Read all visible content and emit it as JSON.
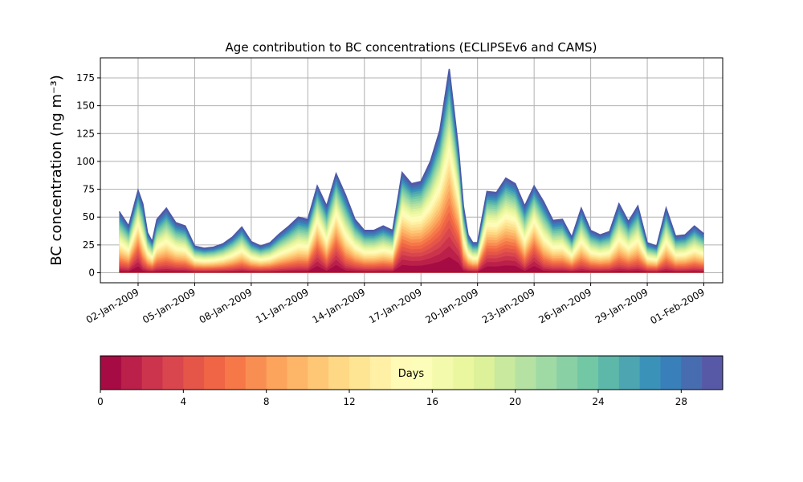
{
  "chart_data": {
    "type": "area",
    "stacked": true,
    "title": "Age contribution to BC concentrations (ECLIPSEv6 and CAMS)",
    "ylabel": "BC concentration (ng m⁻³)",
    "xlabel": "",
    "ylim": [
      -9,
      193
    ],
    "xlim": [
      "2008-12-31",
      "2009-02-02"
    ],
    "y_ticks": [
      0,
      25,
      50,
      75,
      100,
      125,
      150,
      175
    ],
    "x_ticks": [
      "02-Jan-2009",
      "05-Jan-2009",
      "08-Jan-2009",
      "11-Jan-2009",
      "14-Jan-2009",
      "17-Jan-2009",
      "20-Jan-2009",
      "23-Jan-2009",
      "26-Jan-2009",
      "29-Jan-2009",
      "01-Feb-2009"
    ],
    "x_tick_dates": [
      "2009-01-02",
      "2009-01-05",
      "2009-01-08",
      "2009-01-11",
      "2009-01-14",
      "2009-01-17",
      "2009-01-20",
      "2009-01-23",
      "2009-01-26",
      "2009-01-29",
      "2009-02-01"
    ],
    "grid": true,
    "colormap": "Spectral",
    "age_bins_days": 30,
    "total_series": {
      "name": "total",
      "x": [
        "2009-01-01",
        "2009-01-01 12:00",
        "2009-01-02",
        "2009-01-02 06:00",
        "2009-01-02 12:00",
        "2009-01-02 18:00",
        "2009-01-03",
        "2009-01-03 12:00",
        "2009-01-04",
        "2009-01-04 12:00",
        "2009-01-05",
        "2009-01-05 12:00",
        "2009-01-06",
        "2009-01-06 12:00",
        "2009-01-07",
        "2009-01-07 12:00",
        "2009-01-08",
        "2009-01-08 12:00",
        "2009-01-09",
        "2009-01-09 12:00",
        "2009-01-10",
        "2009-01-10 12:00",
        "2009-01-11",
        "2009-01-11 12:00",
        "2009-01-12",
        "2009-01-12 12:00",
        "2009-01-13",
        "2009-01-13 12:00",
        "2009-01-14",
        "2009-01-14 12:00",
        "2009-01-15",
        "2009-01-15 12:00",
        "2009-01-16",
        "2009-01-16 12:00",
        "2009-01-17",
        "2009-01-17 12:00",
        "2009-01-18",
        "2009-01-18 12:00",
        "2009-01-19",
        "2009-01-19 06:00",
        "2009-01-19 12:00",
        "2009-01-19 18:00",
        "2009-01-20",
        "2009-01-20 12:00",
        "2009-01-21",
        "2009-01-21 12:00",
        "2009-01-22",
        "2009-01-22 12:00",
        "2009-01-23",
        "2009-01-23 12:00",
        "2009-01-24",
        "2009-01-24 12:00",
        "2009-01-25",
        "2009-01-25 12:00",
        "2009-01-26",
        "2009-01-26 12:00",
        "2009-01-27",
        "2009-01-27 12:00",
        "2009-01-28",
        "2009-01-28 12:00",
        "2009-01-29",
        "2009-01-29 12:00",
        "2009-01-30",
        "2009-01-30 12:00",
        "2009-01-31",
        "2009-01-31 12:00",
        "2009-02-01"
      ],
      "values": [
        55,
        42,
        74,
        62,
        36,
        28,
        48,
        58,
        45,
        42,
        24,
        22,
        23,
        26,
        32,
        41,
        28,
        24,
        27,
        35,
        42,
        50,
        48,
        78,
        60,
        89,
        70,
        48,
        38,
        38,
        42,
        38,
        90,
        80,
        82,
        100,
        128,
        183,
        110,
        60,
        34,
        27,
        27,
        73,
        72,
        85,
        80,
        60,
        78,
        64,
        47,
        48,
        32,
        58,
        38,
        34,
        37,
        62,
        46,
        60,
        27,
        24,
        58,
        33,
        34,
        42,
        35
      ]
    },
    "colorbar": {
      "label": "Days",
      "range": [
        0,
        30
      ],
      "ticks": [
        0,
        4,
        8,
        12,
        16,
        20,
        24,
        28
      ]
    }
  }
}
